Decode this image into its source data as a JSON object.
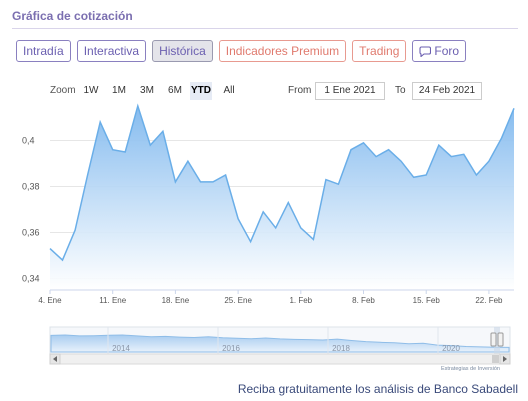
{
  "section_title": "Gráfica de cotización",
  "tabs": [
    {
      "label": "Intradía",
      "active": false,
      "style": "default"
    },
    {
      "label": "Interactiva",
      "active": false,
      "style": "default"
    },
    {
      "label": "Histórica",
      "active": true,
      "style": "default"
    },
    {
      "label": "Indicadores Premium",
      "active": false,
      "style": "premium"
    },
    {
      "label": "Trading",
      "active": false,
      "style": "premium"
    },
    {
      "label": "Foro",
      "active": false,
      "style": "default",
      "icon": "chat-bubble-icon"
    }
  ],
  "range_selector": {
    "zoom_label": "Zoom",
    "buttons": [
      "1W",
      "1M",
      "3M",
      "6M",
      "YTD",
      "All"
    ],
    "selected": "YTD",
    "from_label": "From",
    "from_value": "1 Ene 2021",
    "to_label": "To",
    "to_value": "24 Feb 2021"
  },
  "colors": {
    "line": "#6aaee8",
    "area_top": "#7fb8ee",
    "area_bottom": "#ffffff",
    "grid": "#e6e6e6",
    "accent": "#7b6fb0"
  },
  "chart_data": {
    "type": "area",
    "x_tick_labels": [
      "4. Ene",
      "11. Ene",
      "18. Ene",
      "25. Ene",
      "1. Feb",
      "8. Feb",
      "15. Feb",
      "22. Feb"
    ],
    "y_tick_labels": [
      "0,34",
      "0,36",
      "0,38",
      "0,4"
    ],
    "ylim": [
      0.335,
      0.415
    ],
    "grid": true,
    "series": [
      {
        "x": [
          "2021-01-04",
          "2021-01-05",
          "2021-01-06",
          "2021-01-07",
          "2021-01-08",
          "2021-01-11",
          "2021-01-12",
          "2021-01-13",
          "2021-01-14",
          "2021-01-15",
          "2021-01-18",
          "2021-01-19",
          "2021-01-20",
          "2021-01-21",
          "2021-01-22",
          "2021-01-25",
          "2021-01-26",
          "2021-01-27",
          "2021-01-28",
          "2021-01-29",
          "2021-02-01",
          "2021-02-02",
          "2021-02-03",
          "2021-02-04",
          "2021-02-05",
          "2021-02-08",
          "2021-02-09",
          "2021-02-10",
          "2021-02-11",
          "2021-02-12",
          "2021-02-15",
          "2021-02-16",
          "2021-02-17",
          "2021-02-18",
          "2021-02-19",
          "2021-02-22",
          "2021-02-23",
          "2021-02-24"
        ],
        "values": [
          0.353,
          0.348,
          0.361,
          0.385,
          0.408,
          0.396,
          0.395,
          0.415,
          0.398,
          0.404,
          0.382,
          0.391,
          0.382,
          0.382,
          0.385,
          0.366,
          0.356,
          0.369,
          0.362,
          0.373,
          0.362,
          0.357,
          0.383,
          0.381,
          0.396,
          0.399,
          0.393,
          0.396,
          0.391,
          0.384,
          0.385,
          0.398,
          0.393,
          0.394,
          0.385,
          0.391,
          0.401,
          0.414
        ]
      }
    ]
  },
  "navigator": {
    "year_labels": [
      "2014",
      "2016",
      "2018",
      "2020"
    ],
    "watermark": "Estrategias de Inversión",
    "history_values": [
      0.72,
      0.74,
      0.7,
      0.71,
      0.73,
      0.74,
      0.7,
      0.66,
      0.68,
      0.65,
      0.63,
      0.66,
      0.62,
      0.6,
      0.58,
      0.61,
      0.57,
      0.55,
      0.54,
      0.52,
      0.56,
      0.5,
      0.45,
      0.42,
      0.4,
      0.36,
      0.38,
      0.3,
      0.28,
      0.24,
      0.22,
      0.21,
      0.2
    ]
  },
  "footer_link": "Reciba gratuitamente los análisis de Banco Sabadell"
}
